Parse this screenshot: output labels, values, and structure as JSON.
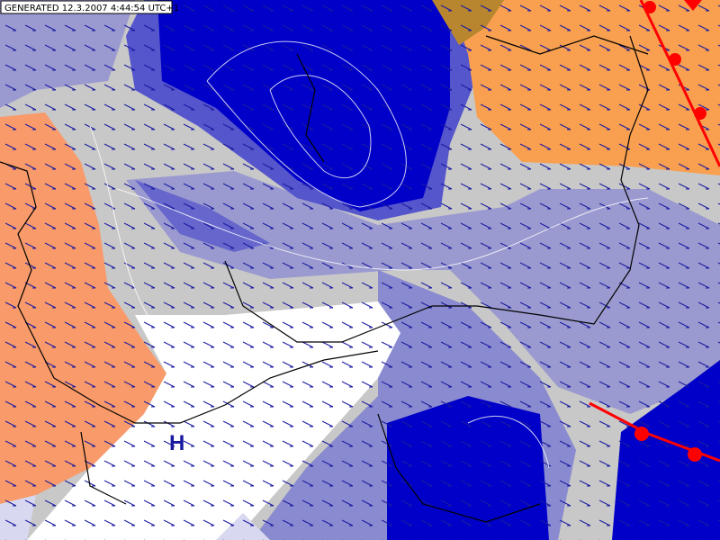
{
  "header": {
    "generated": "GENERATED 12.3.2007 4:44:54 UTC+1"
  },
  "map": {
    "pressure_labels": [
      "H"
    ]
  }
}
